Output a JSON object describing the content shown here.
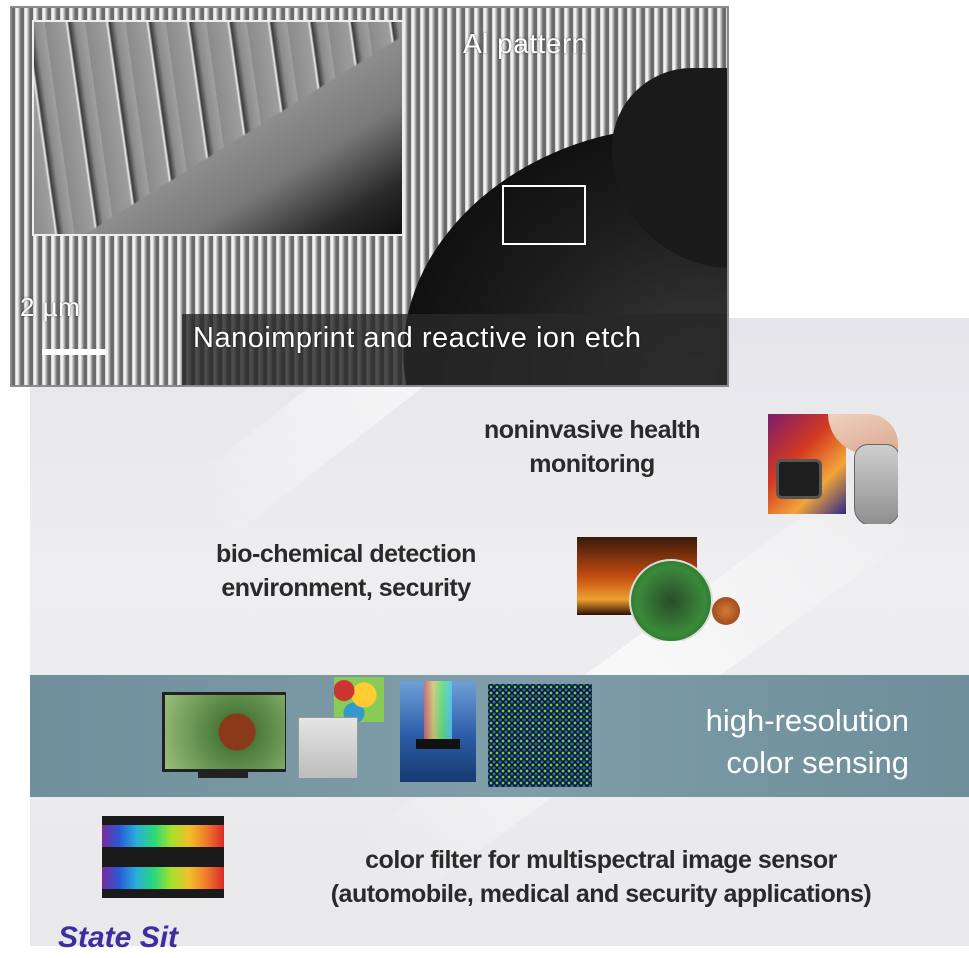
{
  "sem_image": {
    "pattern_label": "Al pattern",
    "scale_label": "2 µm",
    "caption": "Nanoimprint and reactive ion etch"
  },
  "applications": {
    "health": [
      "noninvasive health",
      "monitoring"
    ],
    "bio": [
      "bio-chemical detection",
      "environment, security"
    ],
    "color_sensing": [
      "high-resolution",
      "color sensing"
    ],
    "filter": [
      "color filter for multispectral image sensor",
      "(automobile, medical and security applications)"
    ]
  },
  "footer": {
    "logo_text": "State Sit"
  },
  "colors": {
    "band": "#7f9ea9",
    "logo": "#3a2ea0",
    "panel": "#e9e9ec"
  }
}
